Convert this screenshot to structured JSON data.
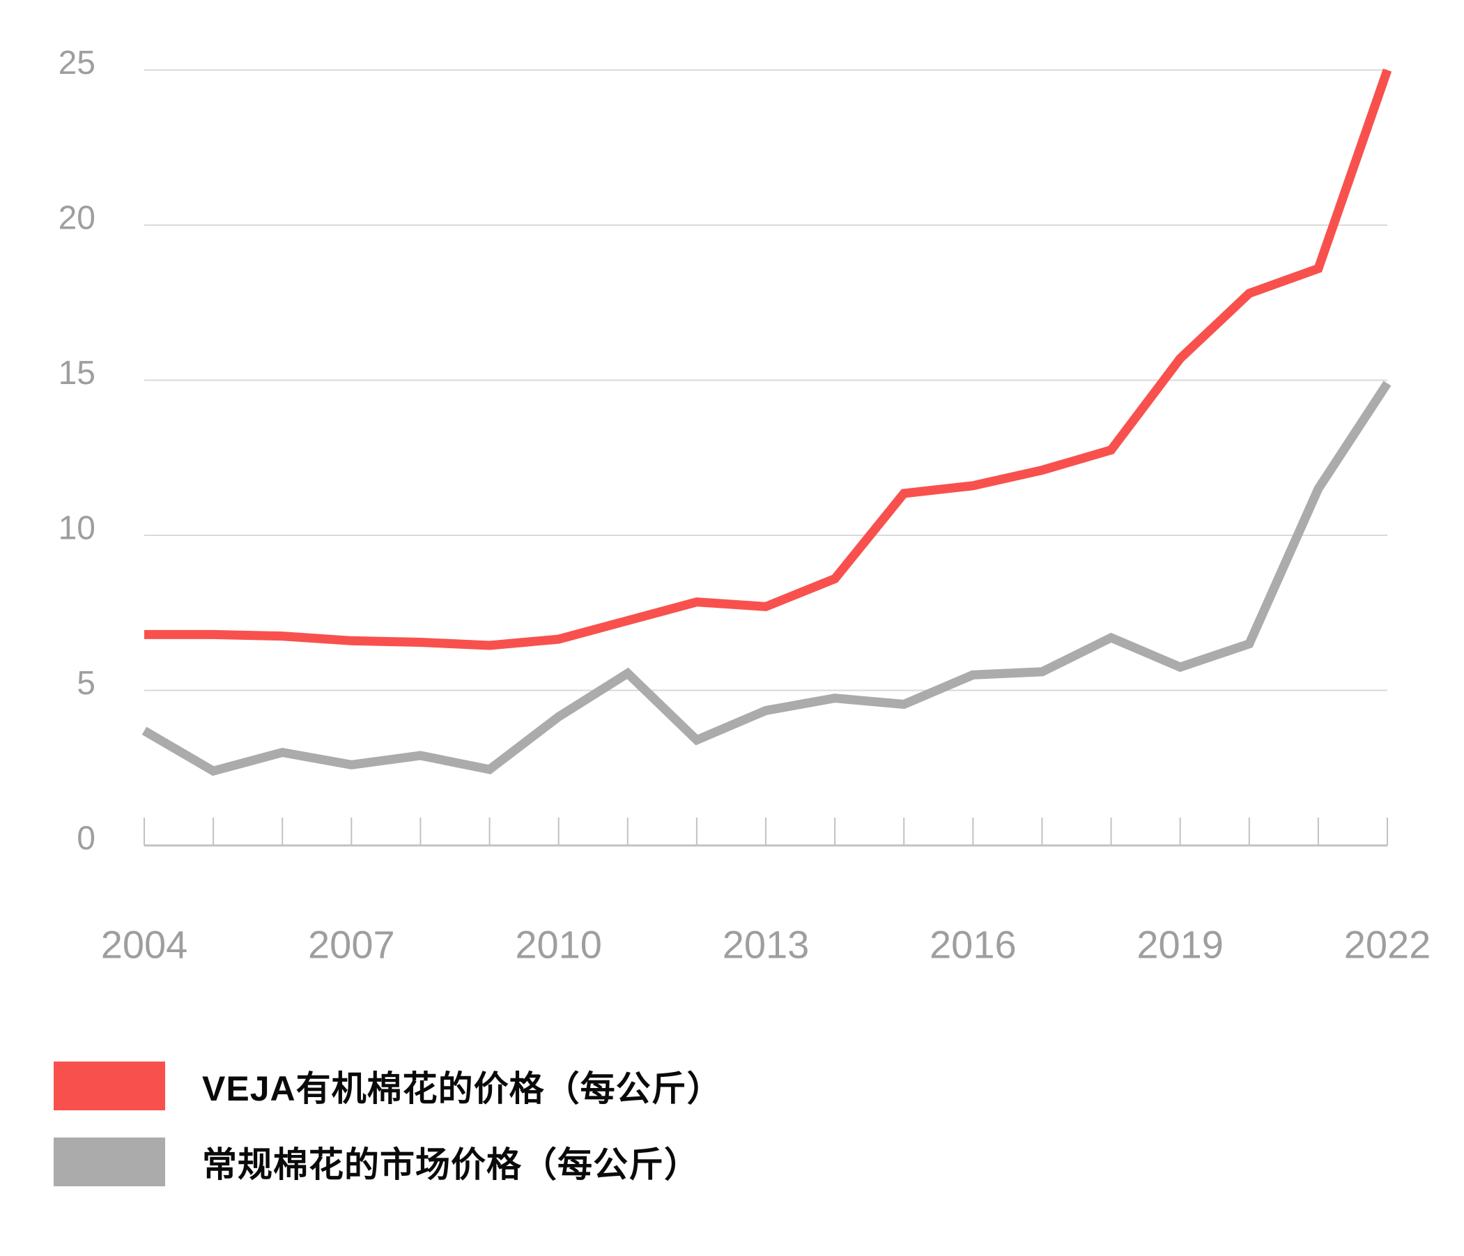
{
  "chart_data": {
    "type": "line",
    "title": "",
    "x": [
      2004,
      2005,
      2006,
      2007,
      2008,
      2009,
      2010,
      2011,
      2012,
      2013,
      2014,
      2015,
      2016,
      2017,
      2018,
      2019,
      2020,
      2021,
      2022
    ],
    "x_tick_labels": [
      "2004",
      "2007",
      "2010",
      "2013",
      "2016",
      "2019",
      "2022"
    ],
    "y_ticks": [
      0,
      5,
      10,
      15,
      20,
      25
    ],
    "y_tick_labels": [
      "0",
      "5",
      "10",
      "15",
      "20",
      "25"
    ],
    "ylim": [
      0,
      25
    ],
    "grid": "horizontal-only",
    "legend_position": "bottom-left",
    "series": [
      {
        "key": "veja-organic",
        "name": "VEJA有机棉花的价格（每公斤）",
        "color": "#F8514D",
        "values": [
          6.8,
          6.8,
          6.75,
          6.6,
          6.55,
          6.45,
          6.65,
          7.25,
          7.85,
          7.7,
          8.6,
          11.35,
          11.6,
          12.1,
          12.75,
          15.7,
          17.8,
          18.6,
          25.0
        ]
      },
      {
        "key": "conventional",
        "name": "常规棉花的市场价格（每公斤）",
        "color": "#ABABAB",
        "values": [
          3.7,
          2.4,
          3.0,
          2.6,
          2.9,
          2.45,
          4.15,
          5.55,
          3.4,
          4.35,
          4.75,
          4.55,
          5.5,
          5.6,
          6.7,
          5.75,
          6.5,
          11.5,
          14.9
        ]
      }
    ]
  },
  "colors": {
    "background": "#FFFFFF",
    "gridline": "#D9D9D9",
    "axis": "#C2C2C2",
    "tick_label": "#9E9E9E",
    "legend_text": "#0A0A0A"
  }
}
